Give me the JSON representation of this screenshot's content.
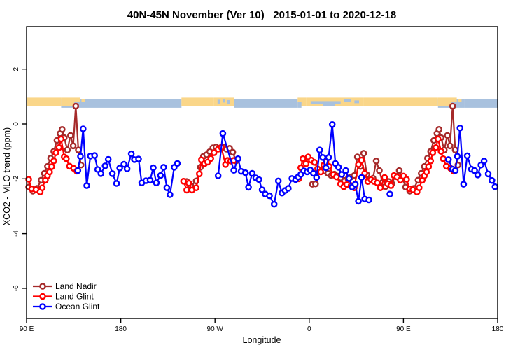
{
  "title": "40N-45N November (Ver 10)   2015-01-01 to 2020-12-18",
  "chart_data": {
    "type": "line",
    "title": "40N-45N November (Ver 10)   2015-01-01 to 2020-12-18",
    "xlabel": "Longitude",
    "ylabel": "XCO2 - MLO trend (ppm)",
    "xlim": [
      90,
      540
    ],
    "ylim": [
      -7.1,
      3.55
    ],
    "grid": false,
    "legend_position": "bottom-left",
    "x_ticks": [
      {
        "lon": 90,
        "label": "90 E"
      },
      {
        "lon": 180,
        "label": "180"
      },
      {
        "lon": 270,
        "label": "90 W"
      },
      {
        "lon": 360,
        "label": "0"
      },
      {
        "lon": 450,
        "label": "90 E"
      },
      {
        "lon": 540,
        "label": "180"
      }
    ],
    "y_ticks": [
      {
        "v": 2,
        "label": "2"
      },
      {
        "v": 0,
        "label": "0"
      },
      {
        "v": -2,
        "label": "-2"
      },
      {
        "v": -4,
        "label": "-4"
      },
      {
        "v": -6,
        "label": "-6"
      }
    ],
    "map_band": {
      "land_color": "#FAD689",
      "ocean_color": "#A8C1DE",
      "v_land_top": 0.96,
      "v_land_bot": 0.64,
      "v_ocean_top": 0.91,
      "v_ocean_bot": 0.59,
      "segments": [
        {
          "from": 90,
          "to": 123,
          "type": "land",
          "name": "asia-east"
        },
        {
          "from": 123,
          "to": 148,
          "type": "coast",
          "name": "japan-sea"
        },
        {
          "from": 148,
          "to": 238,
          "type": "ocean",
          "name": "pacific"
        },
        {
          "from": 238,
          "to": 269,
          "type": "land",
          "name": "north-america"
        },
        {
          "from": 269,
          "to": 288,
          "type": "lakes",
          "name": "great-lakes"
        },
        {
          "from": 288,
          "to": 349,
          "type": "ocean",
          "name": "atlantic"
        },
        {
          "from": 349,
          "to": 357,
          "type": "coast2",
          "name": "iberia"
        },
        {
          "from": 357,
          "to": 412,
          "type": "med",
          "name": "mediterranean-black-caspian"
        },
        {
          "from": 412,
          "to": 483,
          "type": "land",
          "name": "central-asia"
        },
        {
          "from": 483,
          "to": 508,
          "type": "coast",
          "name": "japan-sea-repeat"
        },
        {
          "from": 508,
          "to": 540,
          "type": "ocean",
          "name": "pacific-repeat"
        }
      ]
    },
    "series": [
      {
        "name": "Land Nadir",
        "color": "#A52A2A",
        "points": [
          [
            92,
            -2.3
          ],
          [
            96,
            -2.45
          ],
          [
            100,
            -2.35
          ],
          [
            104,
            -2.05
          ],
          [
            107,
            -1.8
          ],
          [
            110,
            -1.55
          ],
          [
            113,
            -1.25
          ],
          [
            116,
            -1.0
          ],
          [
            119,
            -0.6
          ],
          [
            122,
            -0.35
          ],
          [
            124,
            -0.2
          ],
          [
            126,
            -0.5
          ],
          [
            129,
            -0.95
          ],
          [
            132,
            -0.42
          ],
          [
            134.5,
            -0.8
          ],
          [
            137,
            0.65
          ],
          [
            139.5,
            -0.95
          ],
          [
            142,
            -1.5
          ],
          [
            243,
            -2.1
          ],
          [
            247,
            -2.26
          ],
          [
            252,
            -2.08
          ],
          [
            256,
            -1.58
          ],
          [
            259,
            -1.18
          ],
          [
            262,
            -1.12
          ],
          [
            265,
            -1.01
          ],
          [
            268,
            -0.87
          ],
          [
            271,
            -0.84
          ],
          [
            274,
            -0.9
          ],
          [
            278,
            -0.84
          ],
          [
            281,
            -0.92
          ],
          [
            284,
            -0.89
          ],
          [
            287,
            -1.03
          ],
          [
            290,
            -1.35
          ],
          [
            363,
            -2.2
          ],
          [
            366,
            -2.19
          ],
          [
            369,
            -1.75
          ],
          [
            372,
            -1.7
          ],
          [
            375,
            -1.72
          ],
          [
            378,
            -1.8
          ],
          [
            381,
            -1.88
          ],
          [
            384,
            -1.83
          ],
          [
            387,
            -1.9
          ],
          [
            390,
            -1.97
          ],
          [
            394,
            -1.88
          ],
          [
            397,
            -2.0
          ],
          [
            400,
            -1.93
          ],
          [
            403,
            -1.88
          ],
          [
            406,
            -1.2
          ],
          [
            409,
            -1.55
          ],
          [
            412,
            -1.07
          ],
          [
            415,
            -1.85
          ],
          [
            418,
            -2.05
          ],
          [
            421,
            -1.98
          ],
          [
            424,
            -1.35
          ],
          [
            427,
            -1.7
          ],
          [
            430,
            -2.13
          ],
          [
            433,
            -2.28
          ],
          [
            436,
            -2.1
          ],
          [
            439,
            -2.18
          ],
          [
            442,
            -1.91
          ],
          [
            446,
            -1.7
          ],
          [
            449,
            -1.95
          ],
          [
            452,
            -2.3
          ],
          [
            456,
            -2.45
          ],
          [
            460,
            -2.35
          ],
          [
            464,
            -2.05
          ],
          [
            467,
            -1.8
          ],
          [
            470,
            -1.55
          ],
          [
            473,
            -1.25
          ],
          [
            476,
            -1.0
          ],
          [
            479,
            -0.6
          ],
          [
            482,
            -0.35
          ],
          [
            484,
            -0.2
          ],
          [
            486,
            -0.5
          ],
          [
            489,
            -0.95
          ],
          [
            492,
            -0.42
          ],
          [
            494.5,
            -0.8
          ],
          [
            497,
            0.65
          ],
          [
            499.5,
            -0.95
          ],
          [
            502,
            -1.5
          ]
        ]
      },
      {
        "name": "Land Glint",
        "color": "#FF0000",
        "points": [
          [
            92,
            -2.02
          ],
          [
            95,
            -2.37
          ],
          [
            99,
            -2.4
          ],
          [
            103,
            -2.48
          ],
          [
            105,
            -2.33
          ],
          [
            108,
            -2.05
          ],
          [
            110,
            -1.89
          ],
          [
            112,
            -1.75
          ],
          [
            114,
            -1.56
          ],
          [
            116,
            -1.35
          ],
          [
            118,
            -1.05
          ],
          [
            121,
            -0.86
          ],
          [
            123,
            -0.55
          ],
          [
            126,
            -1.2
          ],
          [
            128,
            -1.27
          ],
          [
            131,
            -1.54
          ],
          [
            135,
            -1.62
          ],
          [
            138,
            -1.72
          ],
          [
            240,
            -2.09
          ],
          [
            243,
            -2.41
          ],
          [
            245,
            -2.16
          ],
          [
            248,
            -2.41
          ],
          [
            252,
            -2.33
          ],
          [
            255,
            -1.82
          ],
          [
            257,
            -1.31
          ],
          [
            260,
            -1.45
          ],
          [
            263,
            -1.39
          ],
          [
            266,
            -1.26
          ],
          [
            269,
            -1.05
          ],
          [
            273,
            -0.92
          ],
          [
            276,
            -0.85
          ],
          [
            280,
            -1.48
          ],
          [
            282,
            -1.33
          ],
          [
            285,
            -1.35
          ],
          [
            288,
            -1.33
          ],
          [
            350,
            -2.0
          ],
          [
            352,
            -1.6
          ],
          [
            354,
            -1.27
          ],
          [
            357,
            -1.45
          ],
          [
            359,
            -1.2
          ],
          [
            362,
            -1.32
          ],
          [
            365,
            -1.4
          ],
          [
            368,
            -1.64
          ],
          [
            371,
            -1.75
          ],
          [
            374,
            -1.5
          ],
          [
            376,
            -1.39
          ],
          [
            379,
            -1.55
          ],
          [
            383,
            -1.85
          ],
          [
            386,
            -1.93
          ],
          [
            390,
            -2.19
          ],
          [
            393,
            -2.29
          ],
          [
            396,
            -2.21
          ],
          [
            400,
            -2.25
          ],
          [
            403,
            -2.33
          ],
          [
            407,
            -1.48
          ],
          [
            410,
            -1.32
          ],
          [
            413,
            -1.8
          ],
          [
            416,
            -2.1
          ],
          [
            419,
            -2.03
          ],
          [
            422,
            -2.1
          ],
          [
            425,
            -2.15
          ],
          [
            428,
            -2.33
          ],
          [
            432,
            -1.95
          ],
          [
            435,
            -2.18
          ],
          [
            438,
            -2.25
          ],
          [
            441,
            -1.88
          ],
          [
            444,
            -1.93
          ],
          [
            447,
            -2.05
          ],
          [
            450,
            -1.9
          ],
          [
            453,
            -2.02
          ],
          [
            456,
            -2.37
          ],
          [
            459,
            -2.4
          ],
          [
            463,
            -2.48
          ],
          [
            465,
            -2.33
          ],
          [
            468,
            -2.05
          ],
          [
            470,
            -1.89
          ],
          [
            472,
            -1.75
          ],
          [
            474,
            -1.56
          ],
          [
            476,
            -1.35
          ],
          [
            478,
            -1.05
          ],
          [
            481,
            -0.86
          ],
          [
            483,
            -0.55
          ],
          [
            486,
            -1.0
          ],
          [
            488,
            -1.27
          ],
          [
            491,
            -1.54
          ],
          [
            495,
            -1.62
          ],
          [
            498,
            -1.72
          ]
        ]
      },
      {
        "name": "Ocean Glint",
        "color": "#0000FF",
        "points": [
          [
            139,
            -1.7
          ],
          [
            141.5,
            -1.18
          ],
          [
            144,
            -0.18
          ],
          [
            147.5,
            -2.25
          ],
          [
            151,
            -1.17
          ],
          [
            155,
            -1.15
          ],
          [
            158,
            -1.66
          ],
          [
            161,
            -1.81
          ],
          [
            165,
            -1.53
          ],
          [
            168,
            -1.29
          ],
          [
            172,
            -1.81
          ],
          [
            176,
            -2.17
          ],
          [
            179,
            -1.61
          ],
          [
            183,
            -1.47
          ],
          [
            186,
            -1.64
          ],
          [
            190,
            -1.09
          ],
          [
            193,
            -1.3
          ],
          [
            197,
            -1.28
          ],
          [
            200,
            -2.15
          ],
          [
            204,
            -2.07
          ],
          [
            208,
            -2.05
          ],
          [
            211,
            -1.6
          ],
          [
            214,
            -2.15
          ],
          [
            218,
            -1.88
          ],
          [
            221,
            -1.58
          ],
          [
            224,
            -2.33
          ],
          [
            227,
            -2.58
          ],
          [
            231,
            -1.58
          ],
          [
            234,
            -1.44
          ],
          [
            273,
            -1.89
          ],
          [
            277.5,
            -0.35
          ],
          [
            288,
            -1.69
          ],
          [
            292,
            -1.27
          ],
          [
            295,
            -1.73
          ],
          [
            299,
            -1.78
          ],
          [
            302,
            -2.31
          ],
          [
            305.5,
            -1.8
          ],
          [
            309,
            -1.97
          ],
          [
            312,
            -2.03
          ],
          [
            315,
            -2.4
          ],
          [
            318,
            -2.56
          ],
          [
            322,
            -2.62
          ],
          [
            326.5,
            -2.93
          ],
          [
            330.5,
            -2.08
          ],
          [
            334,
            -2.52
          ],
          [
            337,
            -2.43
          ],
          [
            340,
            -2.35
          ],
          [
            343.5,
            -1.99
          ],
          [
            347,
            -2.03
          ],
          [
            349.5,
            -1.93
          ],
          [
            352,
            -1.84
          ],
          [
            355,
            -1.71
          ],
          [
            358,
            -1.75
          ],
          [
            361,
            -1.68
          ],
          [
            364,
            -1.8
          ],
          [
            367,
            -1.95
          ],
          [
            370,
            -0.95
          ],
          [
            373,
            -1.22
          ],
          [
            376,
            -1.6
          ],
          [
            378.5,
            -1.22
          ],
          [
            382,
            -0.02
          ],
          [
            385,
            -1.44
          ],
          [
            388,
            -1.58
          ],
          [
            391,
            -1.84
          ],
          [
            395,
            -1.7
          ],
          [
            398,
            -1.99
          ],
          [
            401,
            -2.3
          ],
          [
            404,
            -2.2
          ],
          [
            407,
            -2.82
          ],
          [
            410,
            -1.95
          ],
          [
            413,
            -2.74
          ],
          [
            417,
            -2.77
          ],
          [
            437,
            -2.56
          ],
          [
            493,
            -1.3
          ],
          [
            497,
            -1.65
          ],
          [
            499.5,
            -1.7
          ],
          [
            501.5,
            -1.18
          ],
          [
            504,
            -0.15
          ],
          [
            507.5,
            -2.2
          ],
          [
            511,
            -1.16
          ],
          [
            515,
            -1.65
          ],
          [
            518,
            -1.7
          ],
          [
            521,
            -1.86
          ],
          [
            524,
            -1.5
          ],
          [
            527,
            -1.35
          ],
          [
            531,
            -1.82
          ],
          [
            534.5,
            -2.06
          ],
          [
            537.5,
            -2.29
          ]
        ]
      }
    ]
  }
}
